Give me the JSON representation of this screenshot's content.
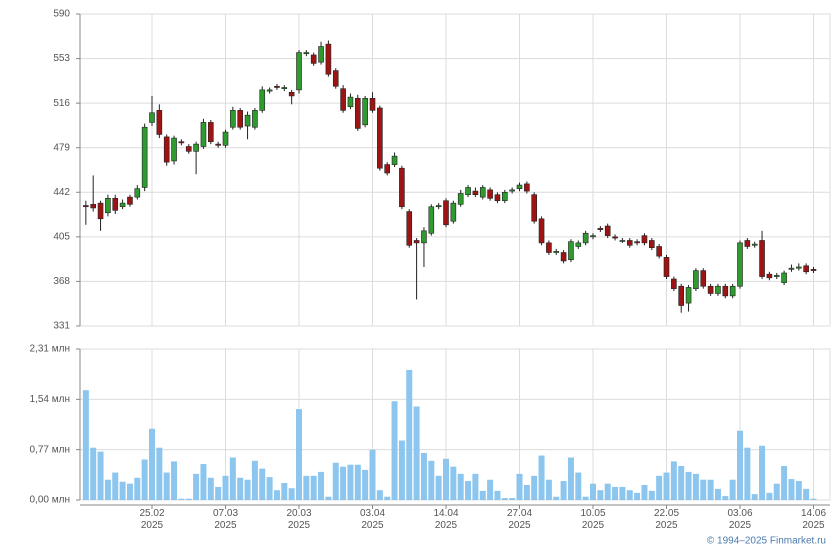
{
  "chart_data": [
    {
      "type": "candlestick",
      "colors": {
        "up": "#2f9a2f",
        "down": "#9e1414"
      },
      "open": [
        431,
        432,
        433,
        425,
        437,
        430,
        438,
        438,
        446,
        500,
        510,
        488,
        468,
        484,
        480,
        476,
        480,
        500,
        482,
        481,
        496,
        510,
        497,
        496,
        510,
        526,
        530,
        528,
        525,
        527,
        557,
        556,
        550,
        565,
        543,
        528,
        513,
        520,
        498,
        520,
        512,
        465,
        465,
        462,
        426,
        402,
        400,
        408,
        430,
        435,
        418,
        432,
        440,
        443,
        438,
        444,
        440,
        435,
        443,
        445,
        449,
        440,
        420,
        400,
        392,
        392,
        386,
        397,
        400,
        405,
        412,
        414,
        405,
        402,
        402,
        401,
        406,
        402,
        397,
        388,
        370,
        364,
        350,
        362,
        377,
        364,
        358,
        364,
        356,
        364,
        402,
        398,
        402,
        374,
        372,
        367,
        378,
        379,
        381,
        378
      ],
      "high": [
        435,
        456,
        435,
        440,
        440,
        436,
        440,
        448,
        499,
        522,
        515,
        490,
        489,
        486,
        482,
        484,
        503,
        502,
        484,
        494,
        513,
        512,
        509,
        512,
        530,
        529,
        532,
        531,
        527,
        560,
        560,
        558,
        567,
        568,
        545,
        531,
        524,
        523,
        522,
        525,
        514,
        467,
        475,
        464,
        428,
        404,
        413,
        432,
        433,
        437,
        435,
        444,
        448,
        446,
        448,
        446,
        442,
        444,
        446,
        450,
        451,
        442,
        422,
        402,
        395,
        394,
        403,
        402,
        410,
        408,
        414,
        416,
        407,
        404,
        404,
        403,
        408,
        404,
        399,
        390,
        372,
        366,
        365,
        379,
        379,
        366,
        366,
        366,
        366,
        402,
        404,
        401,
        410,
        376,
        375,
        377,
        382,
        383,
        383,
        380
      ],
      "low": [
        415,
        426,
        410,
        422,
        424,
        428,
        430,
        436,
        443,
        497,
        487,
        464,
        465,
        481,
        474,
        457,
        478,
        482,
        479,
        479,
        494,
        494,
        486,
        494,
        508,
        524,
        527,
        526,
        515,
        524,
        555,
        547,
        548,
        538,
        528,
        508,
        511,
        493,
        496,
        508,
        460,
        456,
        463,
        428,
        396,
        353,
        380,
        406,
        428,
        413,
        416,
        430,
        438,
        438,
        436,
        435,
        433,
        433,
        441,
        443,
        441,
        416,
        398,
        390,
        390,
        383,
        384,
        395,
        398,
        403,
        409,
        404,
        402,
        400,
        396,
        398,
        398,
        394,
        387,
        370,
        360,
        342,
        343,
        360,
        362,
        356,
        356,
        354,
        354,
        362,
        395,
        396,
        370,
        369,
        370,
        365,
        376,
        377,
        374,
        375
      ],
      "close": [
        430,
        429,
        420,
        437,
        427,
        433,
        432,
        445,
        496,
        508,
        490,
        467,
        487,
        483,
        476,
        482,
        500,
        484,
        481,
        492,
        510,
        496,
        506,
        510,
        527,
        527,
        529,
        529,
        522,
        558,
        558,
        549,
        563,
        540,
        530,
        510,
        521,
        495,
        520,
        510,
        462,
        458,
        472,
        430,
        398,
        400,
        410,
        430,
        431,
        415,
        433,
        441,
        446,
        440,
        446,
        437,
        435,
        442,
        444,
        448,
        443,
        418,
        400,
        392,
        393,
        385,
        401,
        400,
        408,
        406,
        411,
        406,
        404,
        402,
        398,
        400,
        400,
        396,
        389,
        372,
        362,
        348,
        363,
        377,
        364,
        358,
        364,
        356,
        364,
        400,
        397,
        399,
        372,
        371,
        373,
        375,
        379,
        380,
        376,
        377
      ],
      "ylim": [
        331,
        590
      ],
      "yticks": [
        331,
        368,
        405,
        442,
        479,
        516,
        553,
        590
      ],
      "grid": true
    },
    {
      "type": "bar",
      "color": "#8cc6ef",
      "categories": [
        null,
        null,
        null,
        null,
        null,
        null,
        null,
        null,
        null,
        "25.02\n2025",
        null,
        null,
        null,
        null,
        null,
        null,
        null,
        null,
        null,
        "07.03\n2025",
        null,
        null,
        null,
        null,
        null,
        null,
        null,
        null,
        null,
        "20.03\n2025",
        null,
        null,
        null,
        null,
        null,
        null,
        null,
        null,
        null,
        "03.04\n2025",
        null,
        null,
        null,
        null,
        null,
        null,
        null,
        null,
        null,
        "14.04\n2025",
        null,
        null,
        null,
        null,
        null,
        null,
        null,
        null,
        null,
        "27.04\n2025",
        null,
        null,
        null,
        null,
        null,
        null,
        null,
        null,
        null,
        "10.05\n2025",
        null,
        null,
        null,
        null,
        null,
        null,
        null,
        null,
        null,
        "22.05\n2025",
        null,
        null,
        null,
        null,
        null,
        null,
        null,
        null,
        null,
        "03.06\n2025",
        null,
        null,
        null,
        null,
        null,
        null,
        null,
        null,
        null,
        "14.06\n2025"
      ],
      "values": [
        1.68,
        0.8,
        0.74,
        0.31,
        0.42,
        0.28,
        0.25,
        0.34,
        0.62,
        1.09,
        0.8,
        0.42,
        0.59,
        0.02,
        0.02,
        0.4,
        0.55,
        0.34,
        0.2,
        0.37,
        0.65,
        0.34,
        0.31,
        0.6,
        0.48,
        0.35,
        0.15,
        0.26,
        0.18,
        1.39,
        0.37,
        0.37,
        0.43,
        0.05,
        0.57,
        0.51,
        0.54,
        0.54,
        0.46,
        0.77,
        0.15,
        0.05,
        1.51,
        0.91,
        1.99,
        1.43,
        0.72,
        0.6,
        0.37,
        0.63,
        0.51,
        0.4,
        0.29,
        0.4,
        0.14,
        0.31,
        0.14,
        0.03,
        0.03,
        0.4,
        0.23,
        0.37,
        0.68,
        0.31,
        0.05,
        0.29,
        0.65,
        0.42,
        0.05,
        0.25,
        0.15,
        0.25,
        0.2,
        0.2,
        0.15,
        0.11,
        0.23,
        0.14,
        0.37,
        0.42,
        0.59,
        0.52,
        0.43,
        0.4,
        0.31,
        0.31,
        0.17,
        0.06,
        0.31,
        1.06,
        0.8,
        0.09,
        0.83,
        0.11,
        0.25,
        0.52,
        0.32,
        0.29,
        0.17,
        0.02
      ],
      "ylim": [
        0,
        2.31
      ],
      "yticks": [
        {
          "value": 0,
          "label": "0,00 млн"
        },
        {
          "value": 0.77,
          "label": "0,77 млн"
        },
        {
          "value": 1.54,
          "label": "1,54 млн"
        },
        {
          "value": 2.31,
          "label": "2,31 млн"
        }
      ],
      "grid": true
    }
  ],
  "credit": "© 1994–2025 Finmarket.ru"
}
